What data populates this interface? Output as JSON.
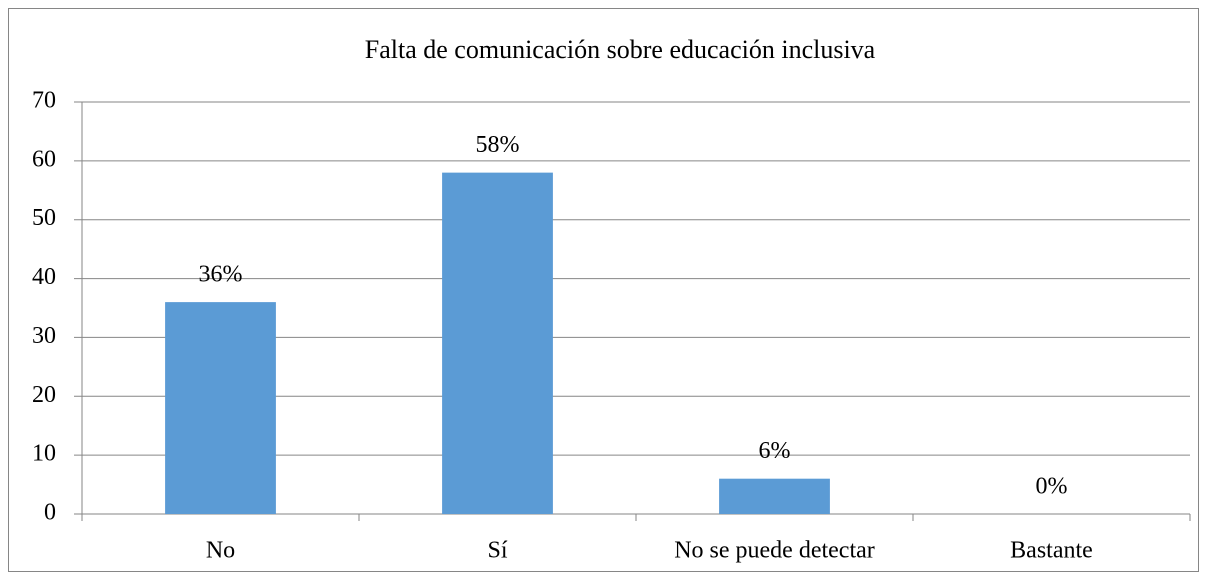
{
  "chart_data": {
    "type": "bar",
    "title": "Falta de comunicación sobre educación inclusiva",
    "categories": [
      "No",
      "Sí",
      "No se puede detectar",
      "Bastante"
    ],
    "values": [
      36,
      58,
      6,
      0
    ],
    "value_labels": [
      "36%",
      "58%",
      "6%",
      "0%"
    ],
    "color": "#5b9bd5",
    "ylim": [
      0,
      70
    ],
    "yticks": [
      0,
      10,
      20,
      30,
      40,
      50,
      60,
      70
    ],
    "grid": true
  }
}
